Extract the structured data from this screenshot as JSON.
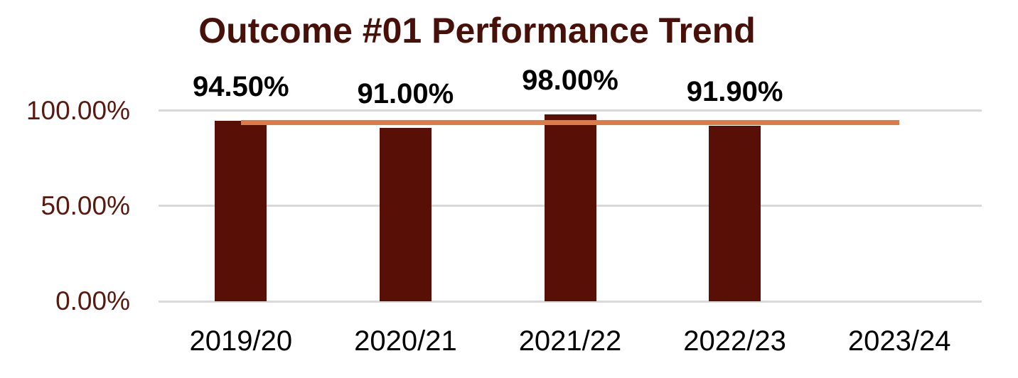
{
  "title": {
    "text": "Outcome #01 Performance Trend"
  },
  "colors": {
    "background": "#FFFFFF",
    "bar": "#570F06",
    "trend_line": "#DC7B45",
    "title_text": "#471109",
    "y_axis_labels": "#5A180F",
    "data_labels": "#000000",
    "category_labels": "#000000",
    "gridline": "#D9D9D9"
  },
  "chart_data": {
    "type": "bar",
    "title": "Outcome #01 Performance Trend",
    "categories": [
      "2019/20",
      "2020/21",
      "2021/22",
      "2022/23",
      "2023/24"
    ],
    "series": [
      {
        "name": "performance-bars",
        "type": "bar",
        "color": "#570F06",
        "values": [
          94.5,
          91.0,
          98.0,
          91.9,
          null
        ],
        "labels": [
          "94.50%",
          "91.00%",
          "98.00%",
          "91.90%",
          ""
        ]
      },
      {
        "name": "trend-target-line",
        "type": "line",
        "color": "#DC7B45",
        "values": [
          93.7,
          93.7,
          93.7,
          93.7,
          93.7
        ]
      }
    ],
    "xlabel": "",
    "ylabel": "",
    "ylim": [
      0,
      100
    ],
    "yticks": [
      {
        "value": 100,
        "label": "100.00%"
      },
      {
        "value": 50,
        "label": "50.00%"
      },
      {
        "value": 0,
        "label": "0.00%"
      }
    ],
    "grid": true,
    "legend": false
  }
}
